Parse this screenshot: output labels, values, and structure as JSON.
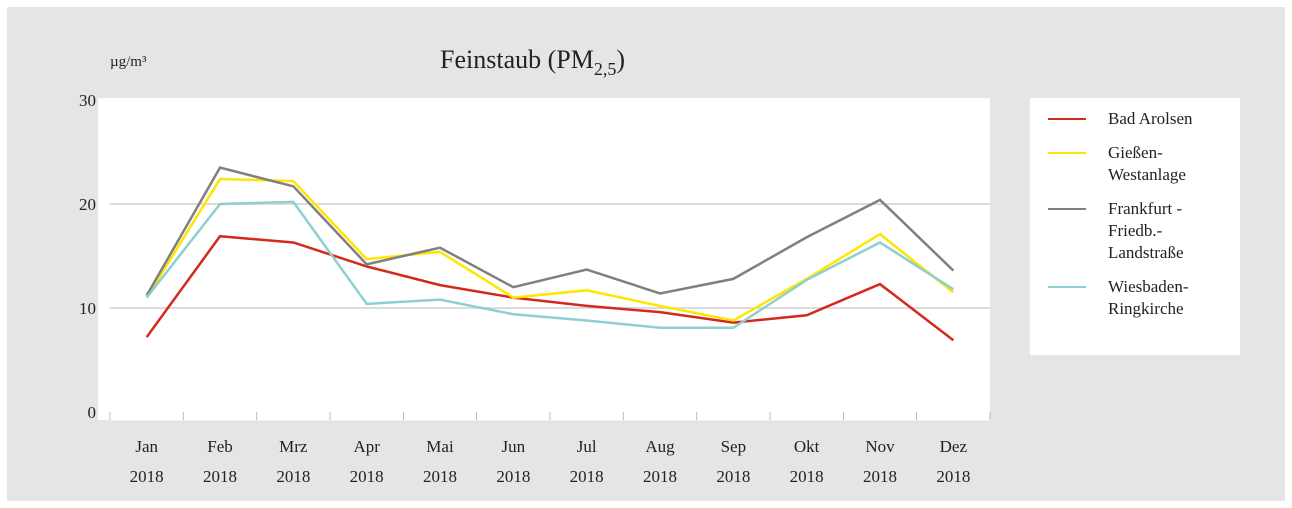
{
  "chart_data": {
    "type": "line",
    "title": "Feinstaub (PM",
    "title_subscript": "2,5",
    "title_end": ")",
    "ylabel": "µg/m³",
    "categories": [
      [
        "Jan",
        "2018"
      ],
      [
        "Feb",
        "2018"
      ],
      [
        "Mrz",
        "2018"
      ],
      [
        "Apr",
        "2018"
      ],
      [
        "Mai",
        "2018"
      ],
      [
        "Jun",
        "2018"
      ],
      [
        "Jul",
        "2018"
      ],
      [
        "Aug",
        "2018"
      ],
      [
        "Sep",
        "2018"
      ],
      [
        "Okt",
        "2018"
      ],
      [
        "Nov",
        "2018"
      ],
      [
        "Dez",
        "2018"
      ]
    ],
    "series": [
      {
        "name": "Bad Arolsen",
        "color": "#d42a1e",
        "values": [
          7.2,
          16.9,
          16.3,
          14.0,
          12.2,
          11.0,
          10.2,
          9.6,
          8.6,
          9.3,
          12.3,
          6.9
        ]
      },
      {
        "name": "Gießen-\nWestanlage",
        "color": "#ffe600",
        "values": [
          11.0,
          22.4,
          22.2,
          14.7,
          15.4,
          11.0,
          11.7,
          10.2,
          8.8,
          12.8,
          17.1,
          11.5
        ]
      },
      {
        "name": "Frankfurt -\nFriedb.-\nLandstraße",
        "color": "#808080",
        "values": [
          11.2,
          23.5,
          21.7,
          14.2,
          15.8,
          12.0,
          13.7,
          11.4,
          12.8,
          16.8,
          20.4,
          13.6
        ]
      },
      {
        "name": "Wiesbaden-\nRingkirche",
        "color": "#8fcfcf",
        "values": [
          11.0,
          20.0,
          20.2,
          10.4,
          10.8,
          9.4,
          8.8,
          8.1,
          8.1,
          12.7,
          16.3,
          11.8
        ]
      }
    ],
    "ylim": [
      0,
      30
    ],
    "yticks": [
      0,
      10,
      20,
      30
    ],
    "grid": true
  }
}
